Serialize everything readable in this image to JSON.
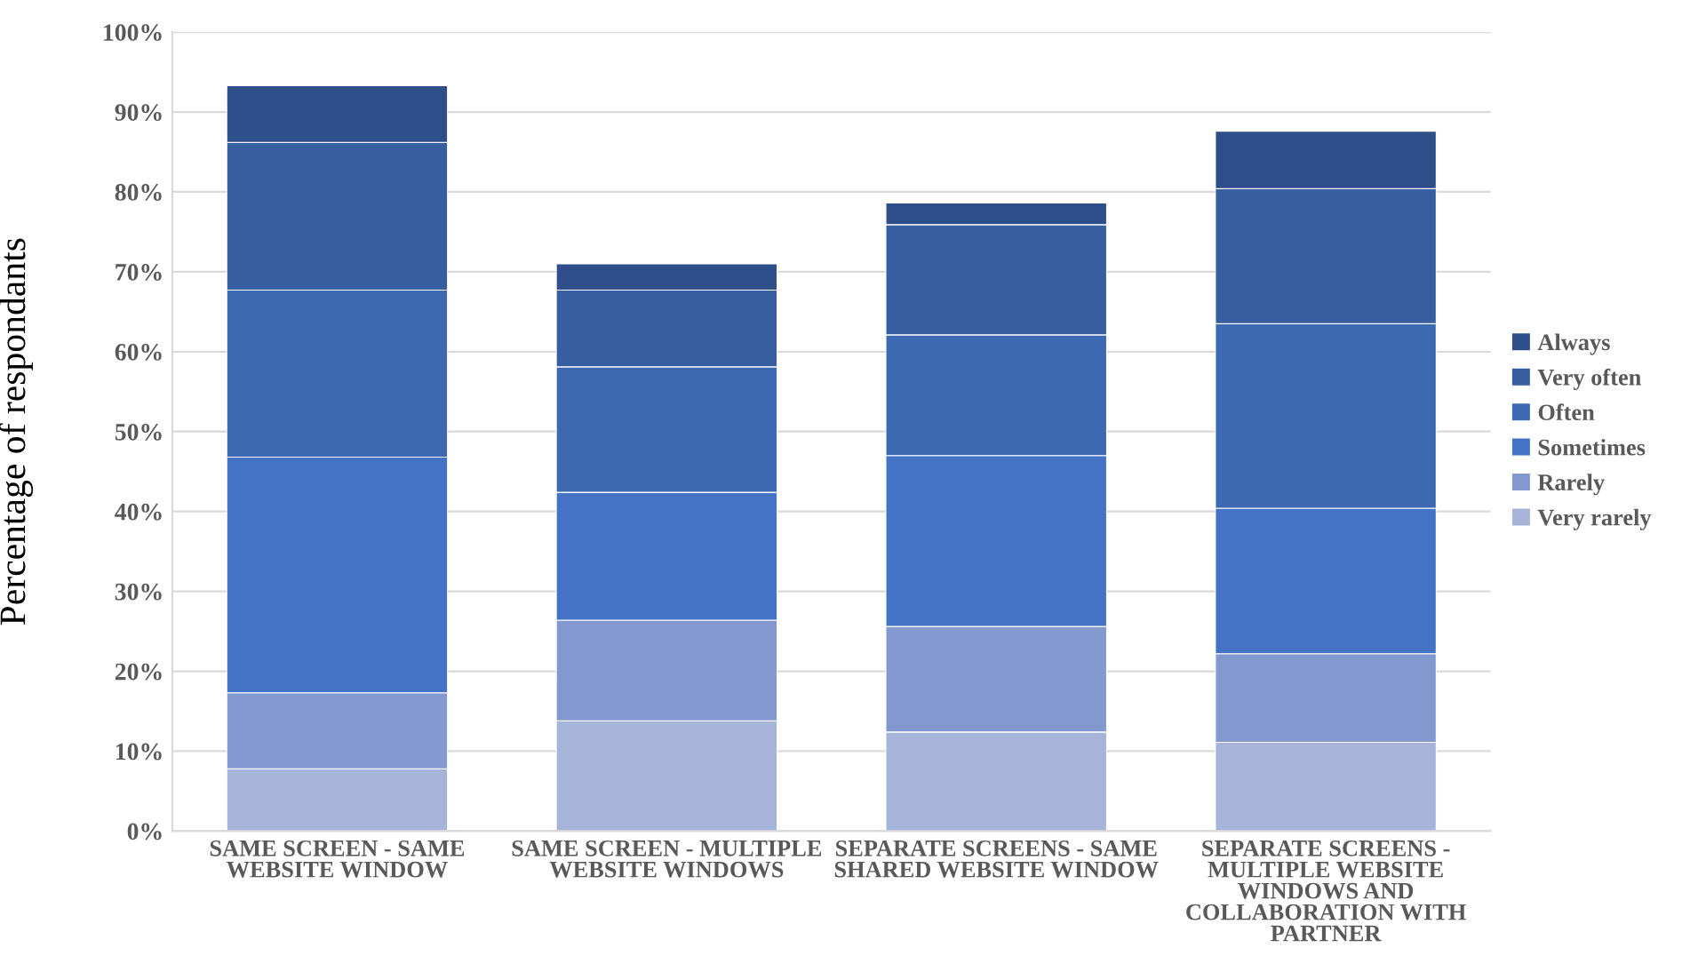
{
  "chart_data": {
    "type": "bar",
    "stacked": true,
    "ylabel": "Percentage of respondants",
    "categories": [
      "SAME SCREEN - SAME\nWEBSITE WINDOW",
      "SAME SCREEN - MULTIPLE\nWEBSITE WINDOWS",
      "SEPARATE SCREENS - SAME\nSHARED WEBSITE WINDOW",
      "SEPARATE SCREENS -\nMULTIPLE WEBSITE\nWINDOWS AND\nCOLLABORATION WITH\nPARTNER"
    ],
    "series": [
      {
        "name": "Very rarely",
        "color": "#a7b4d9",
        "values": [
          7.8,
          13.8,
          12.4,
          11.1
        ]
      },
      {
        "name": "Rarely",
        "color": "#8298cf",
        "values": [
          9.5,
          12.6,
          13.2,
          11.1
        ]
      },
      {
        "name": "Sometimes",
        "color": "#4472c4",
        "values": [
          29.5,
          16.0,
          21.4,
          18.2
        ]
      },
      {
        "name": "Often",
        "color": "#3d69b3",
        "values": [
          20.9,
          15.7,
          15.1,
          23.1
        ]
      },
      {
        "name": "Very often",
        "color": "#365ea0",
        "values": [
          18.5,
          9.6,
          13.8,
          16.9
        ]
      },
      {
        "name": "Always",
        "color": "#2f4f8a",
        "values": [
          7.1,
          3.3,
          2.7,
          7.2
        ]
      }
    ],
    "ylim": [
      0,
      100
    ],
    "yticks": [
      {
        "value": 0,
        "label": "0%"
      },
      {
        "value": 10,
        "label": "10%"
      },
      {
        "value": 20,
        "label": "20%"
      },
      {
        "value": 30,
        "label": "30%"
      },
      {
        "value": 40,
        "label": "40%"
      },
      {
        "value": 50,
        "label": "50%"
      },
      {
        "value": 60,
        "label": "60%"
      },
      {
        "value": 70,
        "label": "70%"
      },
      {
        "value": 80,
        "label": "80%"
      },
      {
        "value": 90,
        "label": "90%"
      },
      {
        "value": 100,
        "label": "100%"
      }
    ],
    "grid": "y",
    "legend": "right"
  }
}
